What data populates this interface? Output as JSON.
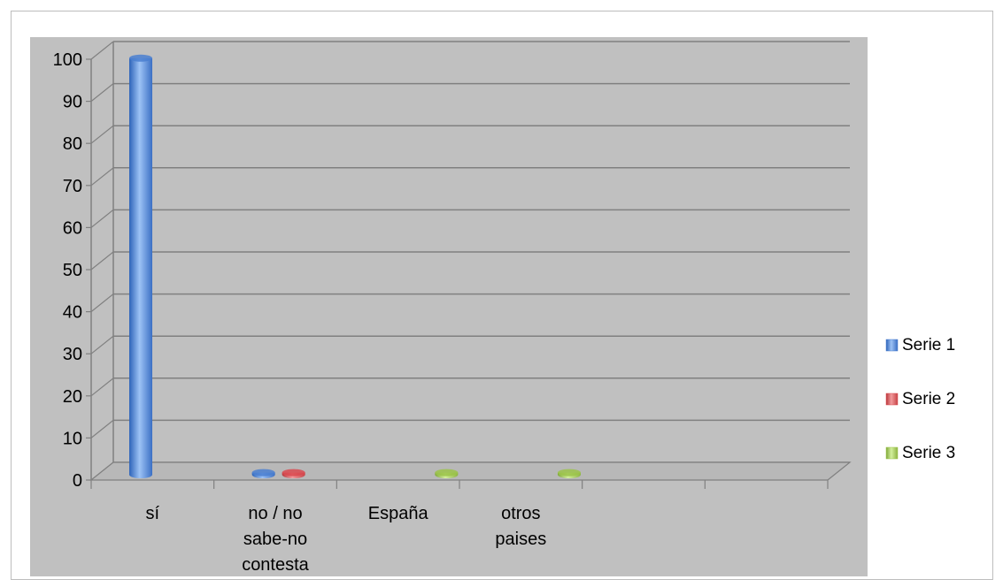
{
  "chart_data": {
    "type": "bar",
    "categories": [
      "sí",
      "no / no sabe-no contesta",
      "España",
      "otros paises",
      "",
      ""
    ],
    "category_lines": [
      [
        "sí"
      ],
      [
        "no / no",
        "sabe-no",
        "contesta"
      ],
      [
        "España"
      ],
      [
        "otros",
        "paises"
      ],
      [],
      []
    ],
    "series": [
      {
        "name": "Serie 1",
        "values": [
          99,
          0.5,
          0,
          0,
          null,
          null
        ],
        "color": "#4a7fd0"
      },
      {
        "name": "Serie 2",
        "values": [
          0,
          0.5,
          0,
          0,
          null,
          null
        ],
        "color": "#d9494f"
      },
      {
        "name": "Serie 3",
        "values": [
          0,
          0,
          0.5,
          0.5,
          null,
          null
        ],
        "color": "#9bc349"
      }
    ],
    "ylim": [
      0,
      100
    ],
    "yticks": [
      "0",
      "10",
      "20",
      "30",
      "40",
      "50",
      "60",
      "70",
      "80",
      "90",
      "100"
    ],
    "grid": true,
    "legend_position": "right",
    "plot_background": "#c0c0c0",
    "title": "",
    "xlabel": "",
    "ylabel": ""
  }
}
